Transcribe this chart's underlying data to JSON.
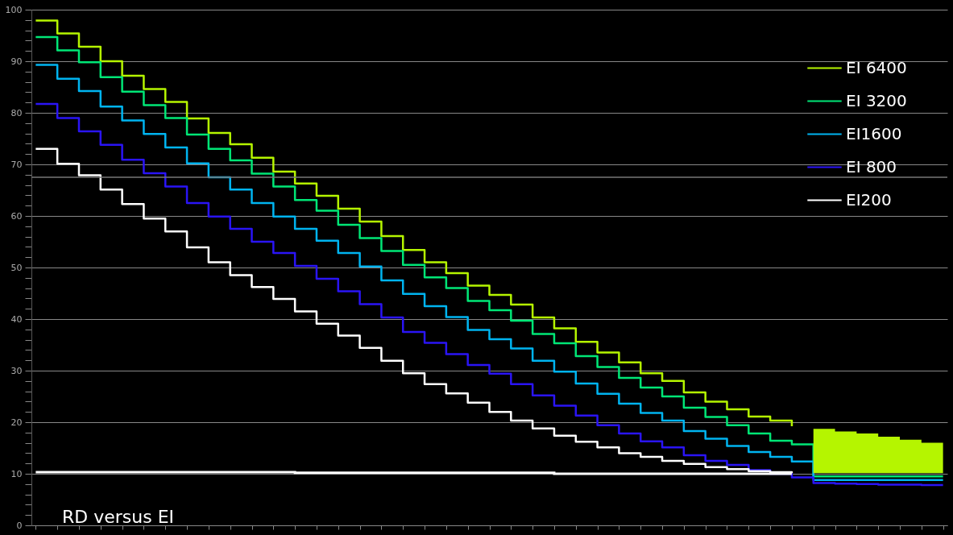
{
  "chart_data": {
    "type": "step",
    "categories": [
      null,
      null,
      null,
      null,
      null,
      null,
      null,
      null,
      null,
      null,
      null,
      null,
      null,
      null,
      null,
      null,
      null,
      null,
      null,
      null,
      null,
      null,
      null,
      null,
      null,
      null,
      null,
      null,
      null,
      null,
      null,
      null,
      null,
      null,
      null,
      null,
      null,
      null,
      null,
      null,
      null,
      null,
      null
    ],
    "series": [
      {
        "name": "EI 6400",
        "color": "#b5f500",
        "values": [
          97.9,
          95.4,
          92.8,
          90.0,
          87.2,
          84.6,
          82.1,
          78.9,
          76.1,
          73.9,
          71.3,
          68.6,
          66.3,
          63.9,
          61.4,
          58.9,
          56.1,
          53.4,
          51.0,
          48.9,
          46.5,
          44.7,
          42.8,
          40.3,
          38.2,
          35.6,
          33.5,
          31.6,
          29.5,
          28.0,
          25.8,
          24.0,
          22.5,
          21.1,
          20.3,
          19.2,
          null,
          null,
          null,
          null,
          null,
          null,
          null
        ],
        "lower": [
          null,
          null,
          null,
          null,
          null,
          null,
          null,
          null,
          null,
          null,
          null,
          null,
          null,
          null,
          null,
          null,
          null,
          null,
          null,
          null,
          null,
          null,
          null,
          null,
          null,
          null,
          null,
          null,
          null,
          null,
          null,
          null,
          null,
          null,
          null,
          null,
          10.1,
          10.1,
          10.1,
          10.1,
          10.1,
          10.1,
          10.1
        ],
        "upper": [
          null,
          null,
          null,
          null,
          null,
          null,
          null,
          null,
          null,
          null,
          null,
          null,
          null,
          null,
          null,
          null,
          null,
          null,
          null,
          null,
          null,
          null,
          null,
          null,
          null,
          null,
          null,
          null,
          null,
          null,
          null,
          null,
          null,
          null,
          null,
          null,
          18.7,
          18.2,
          17.8,
          17.2,
          16.6,
          16.0,
          15.2
        ]
      },
      {
        "name": "EI 3200",
        "color": "#00e676",
        "values": [
          94.7,
          92.1,
          89.8,
          86.9,
          84.1,
          81.5,
          79.0,
          75.8,
          73.0,
          70.8,
          68.2,
          65.7,
          63.1,
          61.0,
          58.3,
          55.7,
          53.2,
          50.5,
          48.1,
          46.0,
          43.5,
          41.7,
          39.7,
          37.1,
          35.3,
          32.8,
          30.7,
          28.6,
          26.7,
          25.0,
          22.8,
          21.0,
          19.4,
          17.8,
          16.4,
          15.7,
          9.5,
          9.5,
          9.5,
          9.5,
          9.5,
          9.5,
          9.5
        ]
      },
      {
        "name": "EI1600",
        "color": "#00b4f0",
        "values": [
          89.3,
          86.6,
          84.2,
          81.2,
          78.5,
          75.9,
          73.3,
          70.2,
          67.5,
          65.1,
          62.5,
          59.9,
          57.5,
          55.2,
          52.8,
          50.2,
          47.5,
          44.9,
          42.5,
          40.4,
          37.9,
          36.1,
          34.3,
          31.9,
          29.8,
          27.5,
          25.5,
          23.6,
          21.8,
          20.3,
          18.3,
          16.8,
          15.4,
          14.2,
          13.3,
          12.4,
          8.8,
          8.8,
          8.8,
          8.8,
          8.8,
          8.8,
          8.8
        ]
      },
      {
        "name": "EI 800",
        "color": "#2a14f5",
        "values": [
          81.7,
          79.0,
          76.4,
          73.8,
          70.9,
          68.3,
          65.7,
          62.5,
          59.9,
          57.5,
          55.0,
          52.8,
          50.3,
          47.8,
          45.4,
          42.9,
          40.3,
          37.5,
          35.4,
          33.2,
          31.1,
          29.4,
          27.4,
          25.2,
          23.2,
          21.3,
          19.4,
          17.8,
          16.3,
          15.1,
          13.6,
          12.5,
          11.7,
          10.7,
          10.0,
          9.3,
          8.2,
          8.1,
          8.0,
          7.9,
          7.9,
          7.8,
          7.8
        ]
      },
      {
        "name": "EI200",
        "color": "#ffffff",
        "values": [
          73.0,
          70.1,
          67.9,
          65.1,
          62.3,
          59.5,
          57.0,
          53.9,
          51.0,
          48.5,
          46.2,
          43.9,
          41.5,
          39.1,
          36.8,
          34.4,
          31.9,
          29.5,
          27.4,
          25.6,
          23.8,
          22.0,
          20.3,
          18.8,
          17.4,
          16.2,
          15.1,
          14.0,
          13.3,
          12.5,
          11.9,
          11.3,
          10.9,
          10.5,
          10.3,
          10.1,
          null,
          null,
          null,
          null,
          null,
          null,
          null
        ]
      },
      {
        "color": "#ffffff",
        "values": [
          10.3,
          10.3,
          10.3,
          10.3,
          10.3,
          10.3,
          10.3,
          10.3,
          10.3,
          10.3,
          10.3,
          10.3,
          10.2,
          10.2,
          10.2,
          10.2,
          10.2,
          10.2,
          10.2,
          10.2,
          10.2,
          10.2,
          10.2,
          10.2,
          10.0,
          10.0,
          10.0,
          10.0,
          10.0,
          10.0,
          10.0,
          10.0,
          10.0,
          10.0,
          10.0,
          10.0,
          null,
          null,
          null,
          null,
          null,
          null,
          null
        ]
      }
    ],
    "ylim": [
      0,
      100
    ],
    "yticks": [
      0,
      {
        "value": 2,
        "label": null
      },
      {
        "value": 4,
        "label": null
      },
      {
        "value": 6,
        "label": null
      },
      {
        "value": 8,
        "label": null
      },
      10,
      {
        "value": 12,
        "label": null
      },
      {
        "value": 14,
        "label": null
      },
      {
        "value": 16,
        "label": null
      },
      {
        "value": 18,
        "label": null
      },
      20,
      {
        "value": 22,
        "label": null
      },
      {
        "value": 24,
        "label": null
      },
      {
        "value": 26,
        "label": null
      },
      {
        "value": 28,
        "label": null
      },
      30,
      {
        "value": 32,
        "label": null
      },
      {
        "value": 34,
        "label": null
      },
      {
        "value": 36,
        "label": null
      },
      {
        "value": 38,
        "label": null
      },
      40,
      {
        "value": 42,
        "label": null
      },
      {
        "value": 44,
        "label": null
      },
      {
        "value": 46,
        "label": null
      },
      {
        "value": 48,
        "label": null
      },
      50,
      {
        "value": 52,
        "label": null
      },
      {
        "value": 54,
        "label": null
      },
      {
        "value": 56,
        "label": null
      },
      {
        "value": 58,
        "label": null
      },
      60,
      {
        "value": 62,
        "label": null
      },
      {
        "value": 64,
        "label": null
      },
      {
        "value": 66,
        "label": null
      },
      {
        "value": 68,
        "label": null
      },
      70,
      {
        "value": 72,
        "label": null
      },
      {
        "value": 74,
        "label": null
      },
      {
        "value": 76,
        "label": null
      },
      {
        "value": 78,
        "label": null
      },
      80,
      {
        "value": 82,
        "label": null
      },
      {
        "value": 84,
        "label": null
      },
      {
        "value": 86,
        "label": null
      },
      {
        "value": 88,
        "label": null
      },
      90,
      {
        "value": 92,
        "label": null
      },
      {
        "value": 94,
        "label": null
      },
      {
        "value": 96,
        "label": null
      },
      {
        "value": 98,
        "label": null
      },
      100
    ],
    "ref_lines": [
      {
        "axis": "y",
        "value": 67.5,
        "color": "#777777"
      }
    ],
    "annotations": [
      "RD versus EI"
    ],
    "grid": "y",
    "legend": "top right",
    "tick_labels": "y",
    "line_style": "solid"
  }
}
